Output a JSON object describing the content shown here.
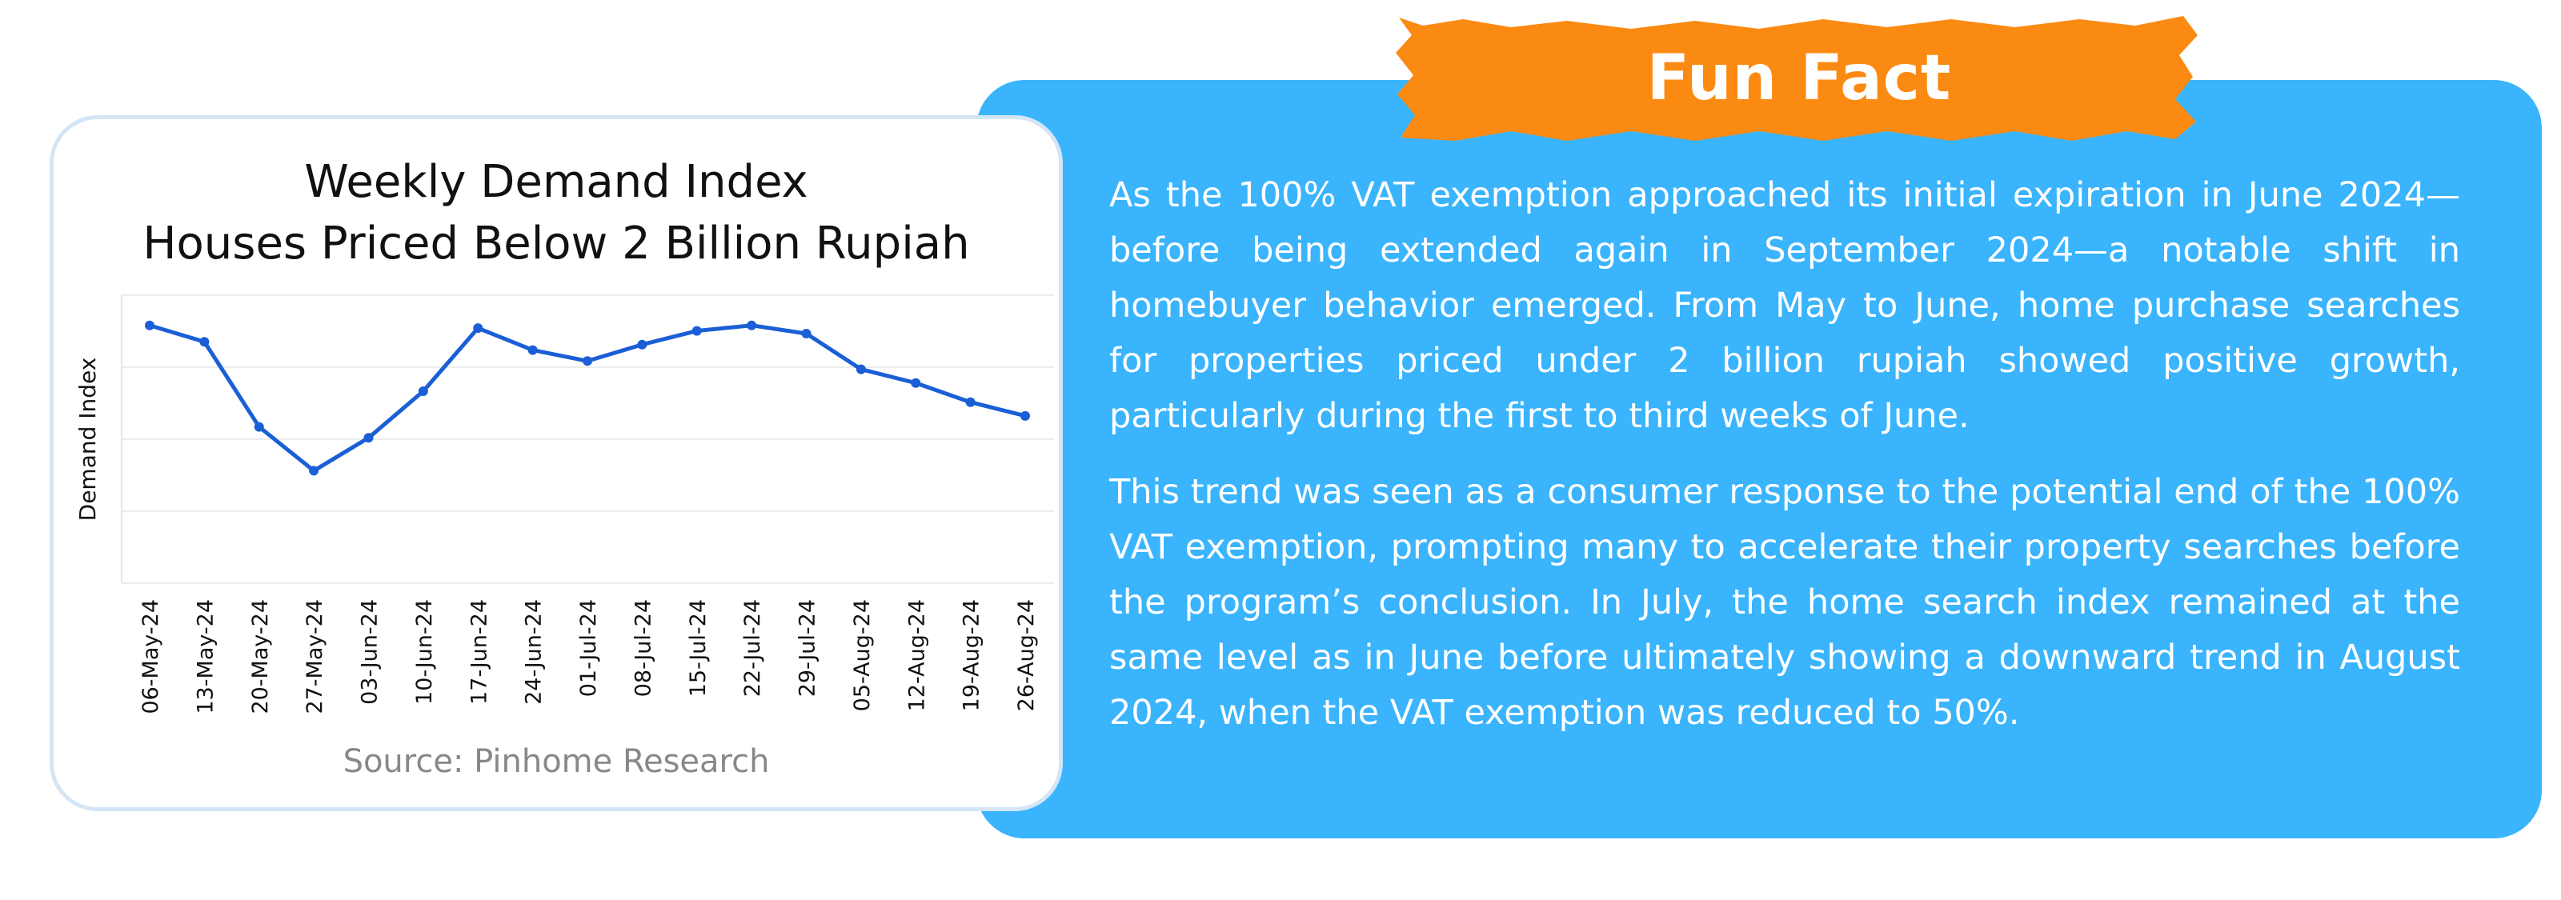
{
  "fun_fact": {
    "title": "Fun Fact",
    "paragraphs": [
      "As the 100% VAT exemption approached its initial expiration in June 2024—before being extended again in September 2024—a notable shift in homebuyer behavior emerged. From May to June, home purchase searches for properties priced under 2 billion rupiah showed positive growth, particularly during the first to third weeks of June.",
      "This trend was seen as a consumer response to the potential end of the 100% VAT exemption, prompting many to accelerate their property searches before the program’s conclusion. In July, the home search index remained at the same level as in June before ultimately showing a downward trend in August 2024, when the VAT exemption was reduced to 50%."
    ]
  },
  "colors": {
    "panel": "#3ab4fc",
    "banner": "#fb8a12",
    "line": "#1a5fd6",
    "card_border": "#d4e6f5"
  },
  "chart_data": {
    "type": "line",
    "title_lines": [
      "Weekly Demand Index",
      "Houses Priced Below 2 Billion Rupiah"
    ],
    "ylabel": "Demand Index",
    "xlabel": "",
    "source": "Source: Pinhome Research",
    "grid": true,
    "categories": [
      "06-May-24",
      "13-May-24",
      "20-May-24",
      "27-May-24",
      "03-Jun-24",
      "10-Jun-24",
      "17-Jun-24",
      "24-Jun-24",
      "01-Jul-24",
      "08-Jul-24",
      "15-Jul-24",
      "22-Jul-24",
      "29-Jul-24",
      "05-Aug-24",
      "12-Aug-24",
      "19-Aug-24",
      "26-Aug-24"
    ],
    "series": [
      {
        "values": [
          94,
          88,
          57,
          41,
          53,
          70,
          93,
          85,
          81,
          87,
          92,
          94,
          91,
          78,
          73,
          66,
          61
        ]
      }
    ],
    "ylim": [
      0,
      105
    ]
  }
}
